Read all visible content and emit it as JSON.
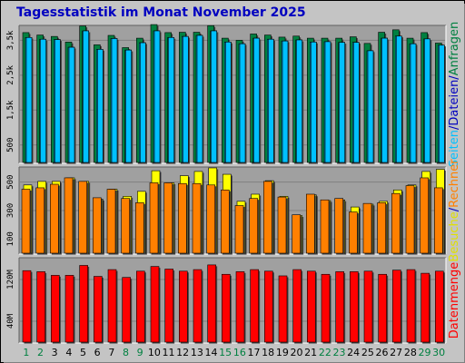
{
  "title": "Tagesstatistik im Monat November 2025",
  "colors": {
    "anfragen": "#008040",
    "dateien": "#00c0ff",
    "seiten": "#00c0ff",
    "besuche": "#ffff00",
    "rechner": "#ff8000",
    "datenmenge": "#ff0000",
    "weekend_day_label": "#008040",
    "weekday_day_label": "#000000",
    "panel_bg": "#a0a0a0",
    "frame_bg": "#c4c4c4"
  },
  "chart_data": [
    {
      "type": "bar",
      "panel": "requests-files-pages",
      "side_labels": [
        {
          "text": "Seiten",
          "color": "#00c0ff"
        },
        {
          "text": "/",
          "color": "#0000c0"
        },
        {
          "text": "Dateien",
          "color": "#0000c0"
        },
        {
          "text": "/",
          "color": "#0000c0"
        },
        {
          "text": "Anfragen",
          "color": "#008040"
        }
      ],
      "yticks": [
        "500",
        "1,5k",
        "2,5k",
        "3,5k"
      ],
      "ytick_values": [
        500,
        1500,
        2500,
        3500
      ],
      "ylim": [
        0,
        3900
      ],
      "categories": [
        "1",
        "2",
        "3",
        "4",
        "5",
        "6",
        "7",
        "8",
        "9",
        "10",
        "11",
        "12",
        "13",
        "14",
        "15",
        "16",
        "17",
        "18",
        "19",
        "20",
        "21",
        "22",
        "23",
        "24",
        "25",
        "26",
        "27",
        "28",
        "29",
        "30"
      ],
      "series": [
        {
          "name": "Anfragen",
          "values": [
            3720,
            3650,
            3610,
            3450,
            3910,
            3370,
            3640,
            3290,
            3560,
            3950,
            3720,
            3730,
            3730,
            3920,
            3560,
            3500,
            3680,
            3650,
            3590,
            3620,
            3560,
            3560,
            3560,
            3600,
            3410,
            3730,
            3800,
            3560,
            3720,
            3420
          ]
        },
        {
          "name": "Dateien",
          "values": [
            3580,
            3530,
            3520,
            3300,
            3770,
            3240,
            3550,
            3220,
            3430,
            3770,
            3580,
            3610,
            3640,
            3770,
            3450,
            3400,
            3560,
            3530,
            3480,
            3510,
            3450,
            3460,
            3440,
            3440,
            3200,
            3560,
            3620,
            3400,
            3540,
            3360
          ]
        },
        {
          "name": "Seiten",
          "values": [
            3580,
            3530,
            3520,
            3300,
            3770,
            3240,
            3550,
            3220,
            3430,
            3770,
            3580,
            3610,
            3640,
            3770,
            3450,
            3400,
            3560,
            3530,
            3480,
            3510,
            3450,
            3460,
            3440,
            3440,
            3200,
            3560,
            3620,
            3400,
            3540,
            3360
          ]
        }
      ]
    },
    {
      "type": "bar",
      "panel": "visits-hosts",
      "side_labels": [
        {
          "text": "Besuche",
          "color": "#e0e000"
        },
        {
          "text": "/",
          "color": "#0000c0"
        },
        {
          "text": "Rechner",
          "color": "#ff8000"
        }
      ],
      "yticks": [
        "100",
        "300",
        "500"
      ],
      "ytick_values": [
        100,
        300,
        500
      ],
      "ylim": [
        0,
        600
      ],
      "categories": [
        "1",
        "2",
        "3",
        "4",
        "5",
        "6",
        "7",
        "8",
        "9",
        "10",
        "11",
        "12",
        "13",
        "14",
        "15",
        "16",
        "17",
        "18",
        "19",
        "20",
        "21",
        "22",
        "23",
        "24",
        "25",
        "26",
        "27",
        "28",
        "29",
        "30"
      ],
      "series": [
        {
          "name": "Besuche",
          "values": [
            480,
            505,
            505,
            530,
            505,
            380,
            450,
            400,
            435,
            580,
            495,
            545,
            575,
            600,
            555,
            365,
            415,
            510,
            400,
            265,
            410,
            370,
            375,
            325,
            345,
            365,
            445,
            480,
            575,
            590
          ]
        },
        {
          "name": "Rechner",
          "values": [
            450,
            460,
            485,
            530,
            505,
            390,
            450,
            385,
            355,
            495,
            495,
            490,
            490,
            480,
            445,
            335,
            385,
            505,
            395,
            270,
            415,
            375,
            385,
            290,
            350,
            355,
            420,
            475,
            530,
            460
          ]
        }
      ]
    },
    {
      "type": "bar",
      "panel": "volume",
      "side_labels": [
        {
          "text": "Datenmenge",
          "color": "#ff0000"
        }
      ],
      "yticks": [
        "40M",
        "120M"
      ],
      "ytick_values": [
        40,
        120
      ],
      "ylim": [
        0,
        160
      ],
      "categories": [
        "1",
        "2",
        "3",
        "4",
        "5",
        "6",
        "7",
        "8",
        "9",
        "10",
        "11",
        "12",
        "13",
        "14",
        "15",
        "16",
        "17",
        "18",
        "19",
        "20",
        "21",
        "22",
        "23",
        "24",
        "25",
        "26",
        "27",
        "28",
        "29",
        "30"
      ],
      "series": [
        {
          "name": "Datenmenge",
          "values": [
            137,
            135,
            128,
            128,
            147,
            126,
            139,
            124,
            136,
            145,
            140,
            136,
            139,
            148,
            130,
            135,
            139,
            136,
            127,
            139,
            136,
            130,
            135,
            135,
            136,
            130,
            138,
            139,
            132,
            136
          ]
        }
      ]
    }
  ],
  "day_labels": [
    "1",
    "2",
    "3",
    "4",
    "5",
    "6",
    "7",
    "8",
    "9",
    "10",
    "11",
    "12",
    "13",
    "14",
    "15",
    "16",
    "17",
    "18",
    "19",
    "20",
    "21",
    "22",
    "23",
    "24",
    "25",
    "26",
    "27",
    "28",
    "29",
    "30"
  ],
  "weekend_days": [
    "1",
    "2",
    "8",
    "9",
    "15",
    "16",
    "22",
    "23",
    "29",
    "30"
  ]
}
